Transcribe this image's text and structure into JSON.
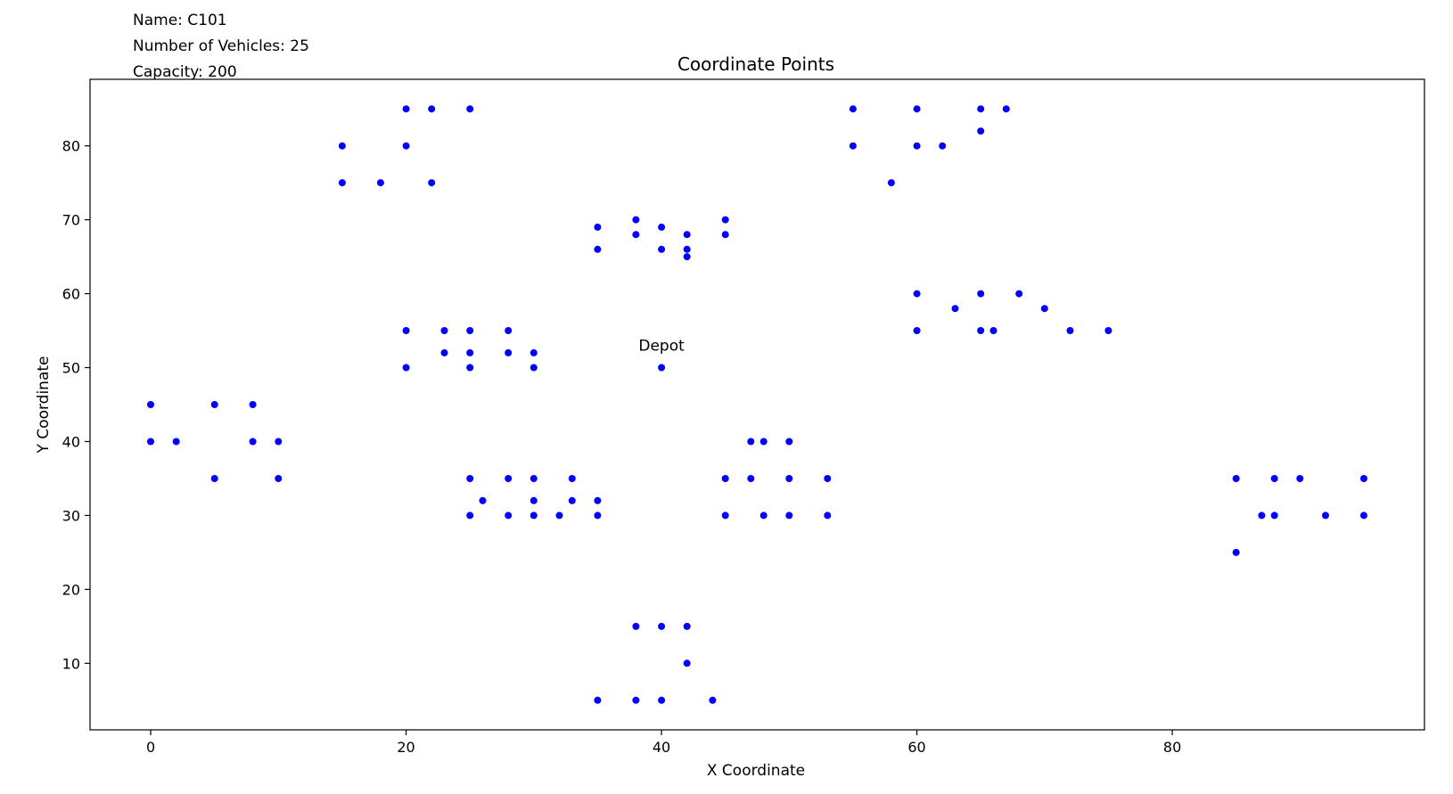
{
  "header": {
    "name_line": "Name: C101",
    "vehicles_line": "Number of Vehicles: 25",
    "capacity_line": "Capacity: 200"
  },
  "chart_data": {
    "type": "scatter",
    "title": "Coordinate Points",
    "xlabel": "X Coordinate",
    "ylabel": "Y Coordinate",
    "xlim": [
      -4.75,
      99.75
    ],
    "ylim": [
      1,
      89
    ],
    "xticks": [
      0,
      20,
      40,
      60,
      80
    ],
    "yticks": [
      10,
      20,
      30,
      40,
      50,
      60,
      70,
      80
    ],
    "grid": false,
    "marker_color": "#0000ff",
    "annotations": [
      {
        "text": "Depot",
        "x": 40,
        "y": 50
      }
    ],
    "points": [
      [
        40,
        50
      ],
      [
        45,
        68
      ],
      [
        45,
        70
      ],
      [
        42,
        66
      ],
      [
        42,
        68
      ],
      [
        42,
        65
      ],
      [
        40,
        69
      ],
      [
        40,
        66
      ],
      [
        38,
        68
      ],
      [
        38,
        70
      ],
      [
        35,
        66
      ],
      [
        35,
        69
      ],
      [
        25,
        85
      ],
      [
        22,
        75
      ],
      [
        22,
        85
      ],
      [
        20,
        80
      ],
      [
        20,
        85
      ],
      [
        18,
        75
      ],
      [
        15,
        75
      ],
      [
        15,
        80
      ],
      [
        30,
        50
      ],
      [
        30,
        52
      ],
      [
        28,
        52
      ],
      [
        28,
        55
      ],
      [
        25,
        50
      ],
      [
        25,
        52
      ],
      [
        25,
        55
      ],
      [
        23,
        52
      ],
      [
        23,
        55
      ],
      [
        20,
        50
      ],
      [
        20,
        55
      ],
      [
        10,
        35
      ],
      [
        10,
        40
      ],
      [
        8,
        40
      ],
      [
        8,
        45
      ],
      [
        5,
        35
      ],
      [
        5,
        45
      ],
      [
        2,
        40
      ],
      [
        0,
        40
      ],
      [
        0,
        45
      ],
      [
        35,
        30
      ],
      [
        35,
        32
      ],
      [
        33,
        32
      ],
      [
        33,
        35
      ],
      [
        32,
        30
      ],
      [
        30,
        30
      ],
      [
        30,
        32
      ],
      [
        30,
        35
      ],
      [
        28,
        30
      ],
      [
        28,
        35
      ],
      [
        26,
        32
      ],
      [
        25,
        30
      ],
      [
        25,
        35
      ],
      [
        44,
        5
      ],
      [
        42,
        10
      ],
      [
        42,
        15
      ],
      [
        40,
        5
      ],
      [
        40,
        15
      ],
      [
        38,
        5
      ],
      [
        38,
        15
      ],
      [
        35,
        5
      ],
      [
        95,
        30
      ],
      [
        95,
        35
      ],
      [
        92,
        30
      ],
      [
        90,
        35
      ],
      [
        88,
        30
      ],
      [
        88,
        35
      ],
      [
        87,
        30
      ],
      [
        85,
        25
      ],
      [
        85,
        35
      ],
      [
        75,
        55
      ],
      [
        72,
        55
      ],
      [
        70,
        58
      ],
      [
        68,
        60
      ],
      [
        66,
        55
      ],
      [
        65,
        55
      ],
      [
        65,
        60
      ],
      [
        63,
        58
      ],
      [
        60,
        55
      ],
      [
        60,
        60
      ],
      [
        67,
        85
      ],
      [
        65,
        85
      ],
      [
        65,
        82
      ],
      [
        62,
        80
      ],
      [
        60,
        80
      ],
      [
        60,
        85
      ],
      [
        58,
        75
      ],
      [
        55,
        80
      ],
      [
        55,
        85
      ],
      [
        53,
        35
      ],
      [
        53,
        30
      ],
      [
        50,
        35
      ],
      [
        50,
        30
      ],
      [
        50,
        40
      ],
      [
        48,
        30
      ],
      [
        48,
        40
      ],
      [
        47,
        35
      ],
      [
        47,
        40
      ],
      [
        45,
        30
      ],
      [
        45,
        35
      ]
    ]
  }
}
